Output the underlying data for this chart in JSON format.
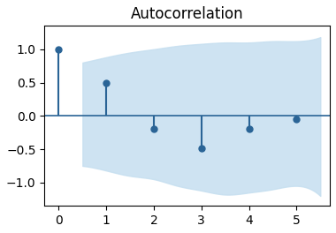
{
  "title": "Autocorrelation",
  "lags": [
    0,
    1,
    2,
    3,
    4,
    5
  ],
  "acf_values": [
    1.0,
    0.5,
    -0.2,
    -0.48,
    -0.2,
    -0.05
  ],
  "stem_color": "#2a6496",
  "conf_color": "#c6dff0",
  "conf_alpha": 0.85,
  "hline_color": "#2a6496",
  "xlim": [
    -0.3,
    5.7
  ],
  "ylim": [
    -1.35,
    1.35
  ],
  "yticks": [
    -1.0,
    -0.5,
    0.0,
    0.5,
    1.0
  ],
  "xticks": [
    0,
    1,
    2,
    3,
    4,
    5
  ],
  "title_fontsize": 12,
  "conf_x": [
    0.5,
    1.0,
    1.5,
    2.0,
    2.5,
    3.0,
    3.5,
    4.0,
    4.5,
    5.0,
    5.5
  ],
  "conf_upper": [
    0.8,
    0.88,
    0.95,
    1.0,
    1.05,
    1.08,
    1.1,
    1.1,
    1.12,
    1.12,
    1.18
  ],
  "conf_lower": [
    -0.75,
    -0.82,
    -0.9,
    -0.95,
    -1.05,
    -1.12,
    -1.18,
    -1.15,
    -1.1,
    -1.05,
    -1.2
  ]
}
